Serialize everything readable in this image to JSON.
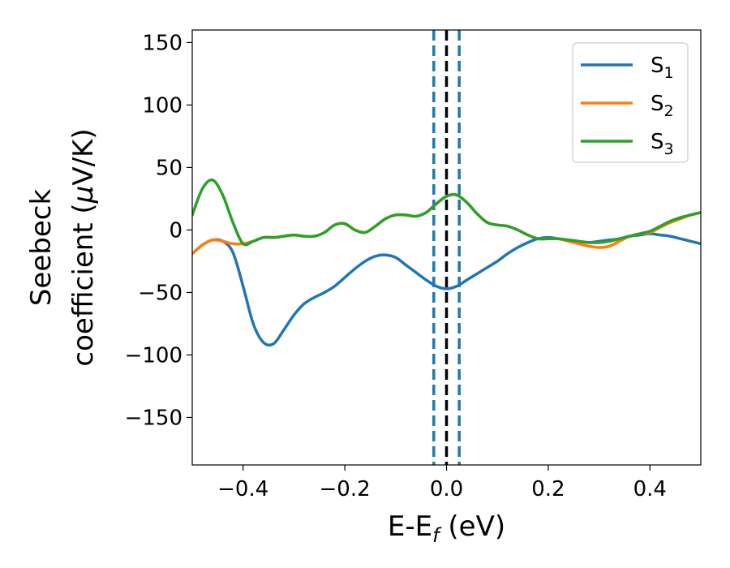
{
  "chart_data": {
    "type": "line",
    "xlabel": {
      "base": "E-E",
      "sub": "f",
      "unit": " (eV)"
    },
    "ylabel": {
      "line1": "Seebeck",
      "line2": "coefficient  (",
      "mu": "μ",
      "unit": "V/K)"
    },
    "xlim": [
      -0.5,
      0.5
    ],
    "ylim": [
      -188,
      160
    ],
    "xticks": [
      -0.4,
      -0.2,
      0.0,
      0.2,
      0.4
    ],
    "xtick_labels": [
      "−0.4",
      "−0.2",
      "0.0",
      "0.2",
      "0.4"
    ],
    "yticks": [
      -150,
      -100,
      -50,
      0,
      50,
      100,
      150
    ],
    "ytick_labels": [
      "−150",
      "−100",
      "−50",
      "0",
      "50",
      "100",
      "150"
    ],
    "legend_position": "top-right",
    "vlines": [
      {
        "x": -0.025,
        "style": "dashed",
        "color": "#1f77b4"
      },
      {
        "x": 0.025,
        "style": "dashed",
        "color": "#1f77b4"
      },
      {
        "x": 0.0,
        "style": "dashed",
        "color": "#000000"
      }
    ],
    "series": [
      {
        "name": "S",
        "sub": "1",
        "color": "#1f77b4",
        "x": [
          -0.5,
          -0.48,
          -0.46,
          -0.44,
          -0.42,
          -0.4,
          -0.38,
          -0.36,
          -0.34,
          -0.32,
          -0.3,
          -0.28,
          -0.26,
          -0.24,
          -0.22,
          -0.2,
          -0.18,
          -0.16,
          -0.14,
          -0.12,
          -0.1,
          -0.08,
          -0.06,
          -0.04,
          -0.02,
          0.0,
          0.02,
          0.04,
          0.06,
          0.08,
          0.1,
          0.12,
          0.14,
          0.16,
          0.18,
          0.2,
          0.22,
          0.24,
          0.26,
          0.28,
          0.3,
          0.32,
          0.34,
          0.36,
          0.38,
          0.4,
          0.42,
          0.44,
          0.46,
          0.48,
          0.5
        ],
        "y": [
          -19,
          -12,
          -8,
          -9,
          -18,
          -45,
          -75,
          -90,
          -91,
          -80,
          -68,
          -59,
          -54,
          -50,
          -45,
          -38,
          -31,
          -25,
          -21,
          -20,
          -22,
          -28,
          -34,
          -40,
          -45,
          -47,
          -45,
          -40,
          -35,
          -30,
          -25,
          -19,
          -14,
          -10,
          -7,
          -6,
          -7,
          -8,
          -9,
          -10,
          -9,
          -8,
          -7,
          -5,
          -4,
          -3,
          -4,
          -5,
          -7,
          -9,
          -11
        ]
      },
      {
        "name": "S",
        "sub": "2",
        "color": "#ff7f0e",
        "x": [
          -0.5,
          -0.48,
          -0.46,
          -0.44,
          -0.42,
          -0.4,
          -0.38,
          -0.36,
          -0.34,
          -0.32,
          -0.3,
          -0.28,
          -0.26,
          -0.24,
          -0.22,
          -0.2,
          -0.18,
          -0.16,
          -0.14,
          -0.12,
          -0.1,
          -0.08,
          -0.06,
          -0.04,
          -0.02,
          0.0,
          0.02,
          0.04,
          0.06,
          0.08,
          0.1,
          0.12,
          0.14,
          0.16,
          0.18,
          0.2,
          0.22,
          0.24,
          0.26,
          0.28,
          0.3,
          0.32,
          0.34,
          0.36,
          0.38,
          0.4,
          0.42,
          0.44,
          0.46,
          0.48,
          0.5
        ],
        "y": [
          -19,
          -12,
          -8,
          -9,
          -11,
          -11,
          -9,
          -6,
          -6,
          -5,
          -4,
          -5,
          -5,
          -2,
          4,
          5,
          0,
          -2,
          3,
          9,
          12,
          12,
          11,
          14,
          21,
          27,
          28,
          22,
          13,
          6,
          4,
          3,
          0,
          -4,
          -7,
          -7,
          -7,
          -9,
          -11,
          -13,
          -14,
          -13,
          -9,
          -5,
          -3,
          -2,
          2,
          6,
          9,
          12,
          14
        ]
      },
      {
        "name": "S",
        "sub": "3",
        "color": "#2ca02c",
        "x": [
          -0.5,
          -0.48,
          -0.46,
          -0.44,
          -0.42,
          -0.4,
          -0.38,
          -0.36,
          -0.34,
          -0.32,
          -0.3,
          -0.28,
          -0.26,
          -0.24,
          -0.22,
          -0.2,
          -0.18,
          -0.16,
          -0.14,
          -0.12,
          -0.1,
          -0.08,
          -0.06,
          -0.04,
          -0.02,
          0.0,
          0.02,
          0.04,
          0.06,
          0.08,
          0.1,
          0.12,
          0.14,
          0.16,
          0.18,
          0.2,
          0.22,
          0.24,
          0.26,
          0.28,
          0.3,
          0.32,
          0.34,
          0.36,
          0.38,
          0.4,
          0.42,
          0.44,
          0.46,
          0.48,
          0.5
        ],
        "y": [
          12,
          33,
          40,
          28,
          6,
          -11,
          -9,
          -6,
          -6,
          -5,
          -4,
          -5,
          -5,
          -2,
          4,
          5,
          0,
          -2,
          3,
          9,
          12,
          12,
          11,
          14,
          21,
          27,
          28,
          22,
          13,
          6,
          4,
          3,
          0,
          -4,
          -7,
          -7,
          -7,
          -8,
          -9,
          -10,
          -10,
          -9,
          -7,
          -5,
          -3,
          -1,
          3,
          7,
          10,
          12,
          14
        ]
      }
    ]
  }
}
